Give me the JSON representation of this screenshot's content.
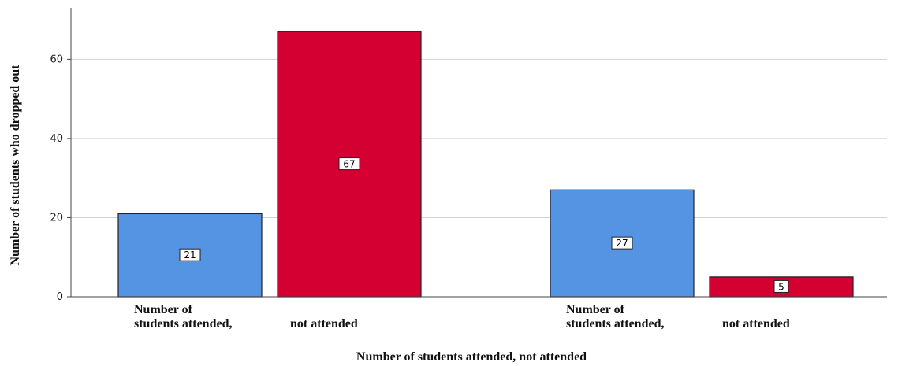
{
  "chart_data": {
    "type": "bar",
    "ylabel": "Number of students who dropped out",
    "xlabel": "Number of students attended, not attended",
    "ylim": [
      0,
      73
    ],
    "yticks": [
      0,
      20,
      40,
      60
    ],
    "grid": true,
    "colors": {
      "attended": "#5594e2",
      "not_attended": "#d30031"
    },
    "groups": [
      {
        "bars": [
          {
            "value": 21,
            "color": "#5594e2"
          },
          {
            "value": 67,
            "color": "#d30031"
          }
        ],
        "label_lines": [
          "Number of",
          "students attended,"
        ],
        "label_right": "not attended"
      },
      {
        "bars": [
          {
            "value": 27,
            "color": "#5594e2"
          },
          {
            "value": 5,
            "color": "#d30031"
          }
        ],
        "label_lines": [
          "Number of",
          "students attended,"
        ],
        "label_right": "not attended"
      }
    ]
  }
}
